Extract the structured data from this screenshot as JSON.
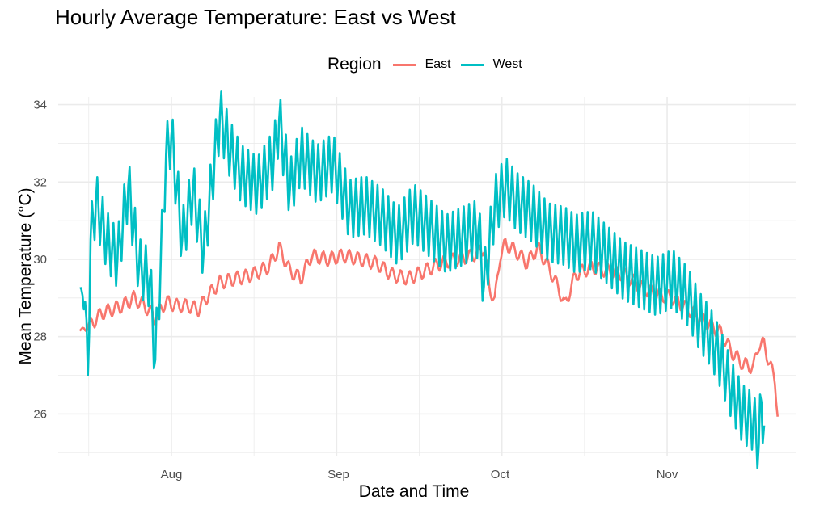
{
  "chart_data": {
    "type": "line",
    "title": "Hourly Average Temperature: East vs West",
    "xlabel": "Date and Time",
    "ylabel": "Mean Temperature (°C)",
    "legend_title": "Region",
    "legend_position": "top",
    "grid": true,
    "x_axis": {
      "type": "date",
      "range": [
        "2023-07-11",
        "2023-11-25"
      ],
      "ticks": [
        "2023-08-01",
        "2023-09-01",
        "2023-10-01",
        "2023-11-01"
      ],
      "tick_labels": [
        "Aug",
        "Sep",
        "Oct",
        "Nov"
      ]
    },
    "y_axis": {
      "range": [
        24.9,
        34.2
      ],
      "ticks": [
        26,
        28,
        30,
        32,
        34
      ]
    },
    "series": [
      {
        "name": "East",
        "color": "#F8766D",
        "points": [
          [
            "2023-07-15",
            28.15
          ],
          [
            "2023-07-17",
            28.3
          ],
          [
            "2023-07-19",
            28.6
          ],
          [
            "2023-07-21",
            28.7
          ],
          [
            "2023-07-23",
            28.8
          ],
          [
            "2023-07-25",
            29.0
          ],
          [
            "2023-07-27",
            28.8
          ],
          [
            "2023-07-29",
            28.5
          ],
          [
            "2023-07-31",
            28.9
          ],
          [
            "2023-08-02",
            28.8
          ],
          [
            "2023-08-04",
            28.8
          ],
          [
            "2023-08-06",
            28.7
          ],
          [
            "2023-08-08",
            29.1
          ],
          [
            "2023-08-10",
            29.4
          ],
          [
            "2023-08-13",
            29.5
          ],
          [
            "2023-08-16",
            29.6
          ],
          [
            "2023-08-19",
            29.8
          ],
          [
            "2023-08-21",
            30.3
          ],
          [
            "2023-08-23",
            29.7
          ],
          [
            "2023-08-25",
            29.5
          ],
          [
            "2023-08-27",
            30.1
          ],
          [
            "2023-08-30",
            30.0
          ],
          [
            "2023-09-02",
            30.1
          ],
          [
            "2023-09-05",
            30.0
          ],
          [
            "2023-09-08",
            29.9
          ],
          [
            "2023-09-11",
            29.6
          ],
          [
            "2023-09-14",
            29.5
          ],
          [
            "2023-09-17",
            29.7
          ],
          [
            "2023-09-20",
            29.9
          ],
          [
            "2023-09-23",
            30.0
          ],
          [
            "2023-09-26",
            30.1
          ],
          [
            "2023-09-28",
            30.3
          ],
          [
            "2023-09-29",
            29.3
          ],
          [
            "2023-09-30",
            28.9
          ],
          [
            "2023-10-01",
            30.1
          ],
          [
            "2023-10-02",
            30.4
          ],
          [
            "2023-10-04",
            30.2
          ],
          [
            "2023-10-06",
            29.9
          ],
          [
            "2023-10-08",
            30.3
          ],
          [
            "2023-10-10",
            29.8
          ],
          [
            "2023-10-12",
            29.2
          ],
          [
            "2023-10-13",
            28.8
          ],
          [
            "2023-10-15",
            29.6
          ],
          [
            "2023-10-18",
            29.8
          ],
          [
            "2023-10-21",
            29.7
          ],
          [
            "2023-10-24",
            29.6
          ],
          [
            "2023-10-27",
            29.3
          ],
          [
            "2023-10-30",
            29.1
          ],
          [
            "2023-11-02",
            29.0
          ],
          [
            "2023-11-05",
            28.7
          ],
          [
            "2023-11-08",
            28.4
          ],
          [
            "2023-11-11",
            28.1
          ],
          [
            "2023-11-13",
            27.6
          ],
          [
            "2023-11-15",
            27.3
          ],
          [
            "2023-11-17",
            27.2
          ],
          [
            "2023-11-18",
            27.8
          ],
          [
            "2023-11-19",
            27.8
          ],
          [
            "2023-11-20",
            27.3
          ],
          [
            "2023-11-21",
            26.9
          ],
          [
            "2023-11-21T12",
            26.0
          ]
        ]
      },
      {
        "name": "West",
        "color": "#00BFC4",
        "points": [
          [
            "2023-07-15",
            29.25
          ],
          [
            "2023-07-16",
            28.9
          ],
          [
            "2023-07-16T12",
            27.0
          ],
          [
            "2023-07-17",
            30.5
          ],
          [
            "2023-07-18",
            31.5
          ],
          [
            "2023-07-20",
            30.5
          ],
          [
            "2023-07-22",
            30.0
          ],
          [
            "2023-07-24",
            31.9
          ],
          [
            "2023-07-26",
            29.8
          ],
          [
            "2023-07-28",
            29.5
          ],
          [
            "2023-07-29",
            27.4
          ],
          [
            "2023-07-30",
            29.8
          ],
          [
            "2023-07-31",
            32.7
          ],
          [
            "2023-08-01",
            33.2
          ],
          [
            "2023-08-03",
            30.5
          ],
          [
            "2023-08-05",
            31.8
          ],
          [
            "2023-08-07",
            30.2
          ],
          [
            "2023-08-09",
            32.6
          ],
          [
            "2023-08-10",
            33.7
          ],
          [
            "2023-08-12",
            32.8
          ],
          [
            "2023-08-14",
            32.2
          ],
          [
            "2023-08-17",
            31.9
          ],
          [
            "2023-08-20",
            32.6
          ],
          [
            "2023-08-21",
            33.6
          ],
          [
            "2023-08-23",
            31.8
          ],
          [
            "2023-08-25",
            32.7
          ],
          [
            "2023-08-28",
            32.2
          ],
          [
            "2023-08-31",
            32.5
          ],
          [
            "2023-09-03",
            31.3
          ],
          [
            "2023-09-06",
            31.4
          ],
          [
            "2023-09-09",
            31.1
          ],
          [
            "2023-09-12",
            30.6
          ],
          [
            "2023-09-15",
            31.2
          ],
          [
            "2023-09-18",
            30.8
          ],
          [
            "2023-09-21",
            30.4
          ],
          [
            "2023-09-24",
            30.6
          ],
          [
            "2023-09-27",
            30.8
          ],
          [
            "2023-09-28",
            29.3
          ],
          [
            "2023-09-30",
            31.4
          ],
          [
            "2023-10-02",
            31.9
          ],
          [
            "2023-10-04",
            31.5
          ],
          [
            "2023-10-07",
            31.2
          ],
          [
            "2023-10-10",
            30.7
          ],
          [
            "2023-10-13",
            30.6
          ],
          [
            "2023-10-15",
            30.4
          ],
          [
            "2023-10-18",
            30.5
          ],
          [
            "2023-10-21",
            30.1
          ],
          [
            "2023-10-24",
            29.7
          ],
          [
            "2023-10-27",
            29.5
          ],
          [
            "2023-10-30",
            29.3
          ],
          [
            "2023-11-02",
            29.5
          ],
          [
            "2023-11-05",
            29.0
          ],
          [
            "2023-11-07",
            28.4
          ],
          [
            "2023-11-09",
            28.0
          ],
          [
            "2023-11-11",
            27.4
          ],
          [
            "2023-11-13",
            26.6
          ],
          [
            "2023-11-15",
            26.0
          ],
          [
            "2023-11-17",
            25.8
          ],
          [
            "2023-11-18",
            25.2
          ],
          [
            "2023-11-18T12",
            26.3
          ],
          [
            "2023-11-19",
            25.7
          ]
        ]
      }
    ]
  }
}
